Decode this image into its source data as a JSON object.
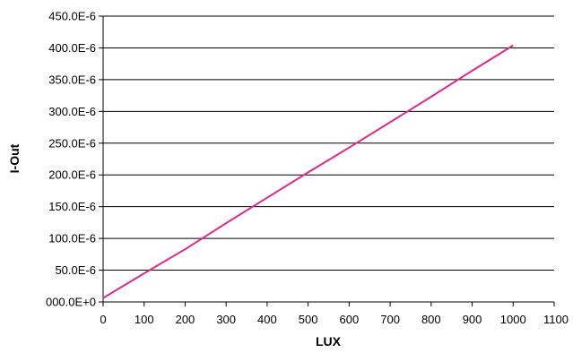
{
  "chart_data": {
    "type": "line",
    "xlabel": "LUX",
    "ylabel": "I-Out",
    "xlim": [
      0,
      1100
    ],
    "ylim": [
      0,
      0.00045
    ],
    "x_ticks": [
      0,
      100,
      200,
      300,
      400,
      500,
      600,
      700,
      800,
      900,
      1000,
      1100
    ],
    "x_tick_labels": [
      "0",
      "100",
      "200",
      "300",
      "400",
      "500",
      "600",
      "700",
      "800",
      "900",
      "1000",
      "1100"
    ],
    "y_ticks": [
      0,
      5e-05,
      0.0001,
      0.00015,
      0.0002,
      0.00025,
      0.0003,
      0.00035,
      0.0004,
      0.00045
    ],
    "y_tick_labels": [
      "000.0E+0",
      "50.0E-6",
      "100.0E-6",
      "150.0E-6",
      "200.0E-6",
      "250.0E-6",
      "300.0E-6",
      "350.0E-6",
      "400.0E-6",
      "450.0E-6"
    ],
    "grid": "horizontal",
    "series": [
      {
        "color": "#e0288e",
        "x": [
          0,
          100,
          200,
          300,
          400,
          500,
          600,
          700,
          800,
          900,
          1000
        ],
        "y": [
          6e-06,
          4.5e-05,
          8.3e-05,
          0.000124,
          0.000164,
          0.000204,
          0.000243,
          0.000283,
          0.000323,
          0.000364,
          0.000404
        ]
      }
    ]
  }
}
